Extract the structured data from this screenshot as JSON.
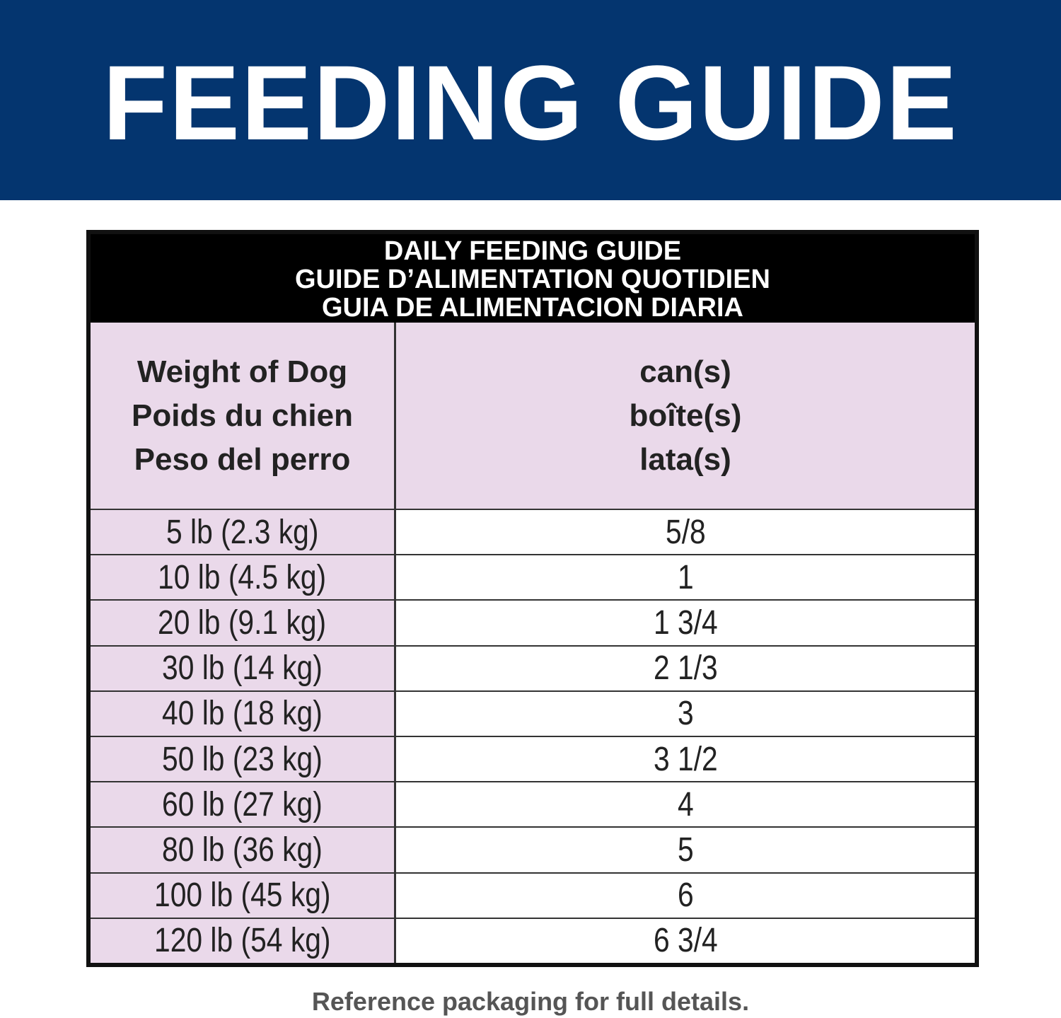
{
  "banner": {
    "title": "FEEDING GUIDE"
  },
  "table": {
    "caption": [
      "DAILY FEEDING GUIDE",
      "GUIDE D’ALIMENTATION QUOTIDIEN",
      "GUIA DE ALIMENTACION DIARIA"
    ],
    "header": [
      [
        "Weight of Dog",
        "Poids du chien",
        "Peso del perro"
      ],
      [
        "can(s)",
        "boîte(s)",
        "lata(s)"
      ]
    ],
    "rows": [
      [
        "5 lb (2.3 kg)",
        "5/8"
      ],
      [
        "10 lb (4.5 kg)",
        "1"
      ],
      [
        "20 lb (9.1 kg)",
        "1 3/4"
      ],
      [
        "30 lb (14 kg)",
        "2 1/3"
      ],
      [
        "40 lb (18 kg)",
        "3"
      ],
      [
        "50 lb (23 kg)",
        "3 1/2"
      ],
      [
        "60 lb (27 kg)",
        "4"
      ],
      [
        "80 lb (36 kg)",
        "5"
      ],
      [
        "100 lb (45 kg)",
        "6"
      ],
      [
        "120 lb (54 kg)",
        "6 3/4"
      ]
    ]
  },
  "footer": "Reference packaging for full details."
}
